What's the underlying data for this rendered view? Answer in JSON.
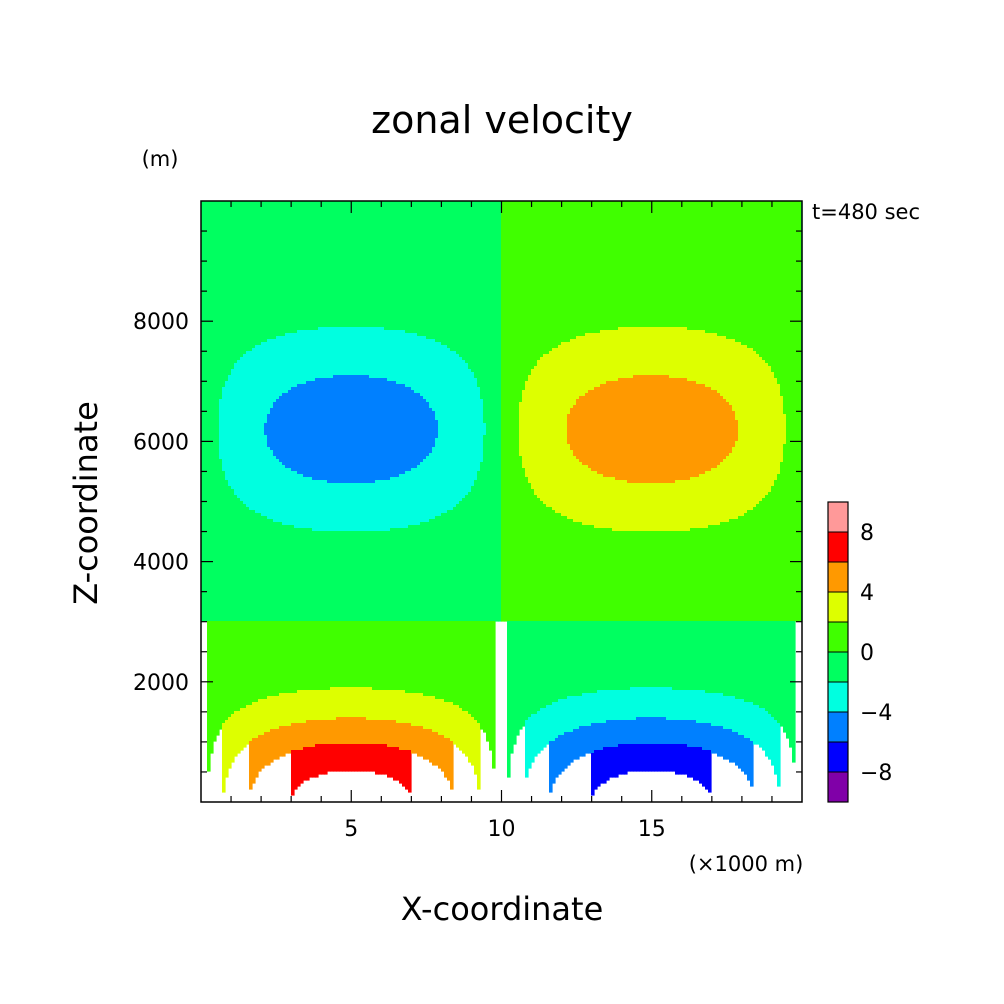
{
  "chart_data": {
    "type": "contour",
    "title": "zonal velocity",
    "xlabel": "X-coordinate",
    "ylabel": "Z-coordinate",
    "x_unit": "(×1000 m)",
    "y_unit": "(m)",
    "annotation": "t=480 sec",
    "xlim": [
      0,
      20
    ],
    "ylim": [
      0,
      10000
    ],
    "x_ticks": [
      5,
      10,
      15
    ],
    "y_ticks": [
      2000,
      4000,
      6000,
      8000
    ],
    "colorbar": {
      "levels": [
        -10,
        -8,
        -6,
        -4,
        -2,
        0,
        2,
        4,
        6,
        8,
        10
      ],
      "colors": [
        "#8000a8",
        "#0000ff",
        "#0080ff",
        "#00ffe0",
        "#00ff60",
        "#40ff00",
        "#ddff00",
        "#ff9900",
        "#ff0000",
        "#ff9999"
      ],
      "tick_labels": [
        "-8",
        "-4",
        "0",
        "4",
        "8"
      ]
    },
    "field": {
      "description_values": "u = A*sin(2*pi*x/20)*g(z); positive lobe near x=5 at surface, negative lobe near x=15 at surface; opposite-signed lobes aloft near z=6200",
      "surface_extremes": [
        {
          "x": 6,
          "z": 0,
          "value": 9
        },
        {
          "x": 14.5,
          "z": 0,
          "value": -9
        }
      ],
      "upper_extremes": [
        {
          "x": 5.8,
          "z": 6200,
          "value": -5
        },
        {
          "x": 14.5,
          "z": 6200,
          "value": 5
        }
      ],
      "zero_line_z": 3000
    }
  }
}
